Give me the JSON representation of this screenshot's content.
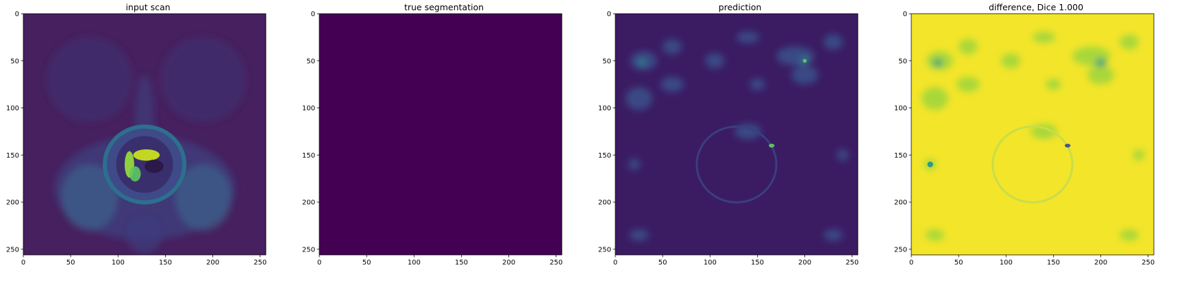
{
  "figure": {
    "panels": [
      {
        "title": "input scan",
        "image": "mri-pelvis-axial-scan",
        "colormap": "viridis"
      },
      {
        "title": "true segmentation",
        "image": "empty-mask",
        "colormap": "viridis"
      },
      {
        "title": "prediction",
        "image": "predicted-probability-map",
        "colormap": "viridis"
      },
      {
        "title": "difference, Dice 1.000",
        "image": "prediction-difference-map",
        "colormap": "viridis"
      }
    ],
    "axes": {
      "x_ticks": [
        "0",
        "50",
        "100",
        "150",
        "200",
        "250"
      ],
      "y_ticks": [
        "0",
        "50",
        "100",
        "150",
        "200",
        "250"
      ],
      "xlim": [
        0,
        256
      ],
      "ylim": [
        256,
        0
      ]
    },
    "colors": {
      "viridis_dark": "#440154",
      "viridis_blue": "#3b528b",
      "viridis_teal": "#21918c",
      "viridis_green": "#5ec962",
      "viridis_yellow": "#fde725"
    }
  }
}
